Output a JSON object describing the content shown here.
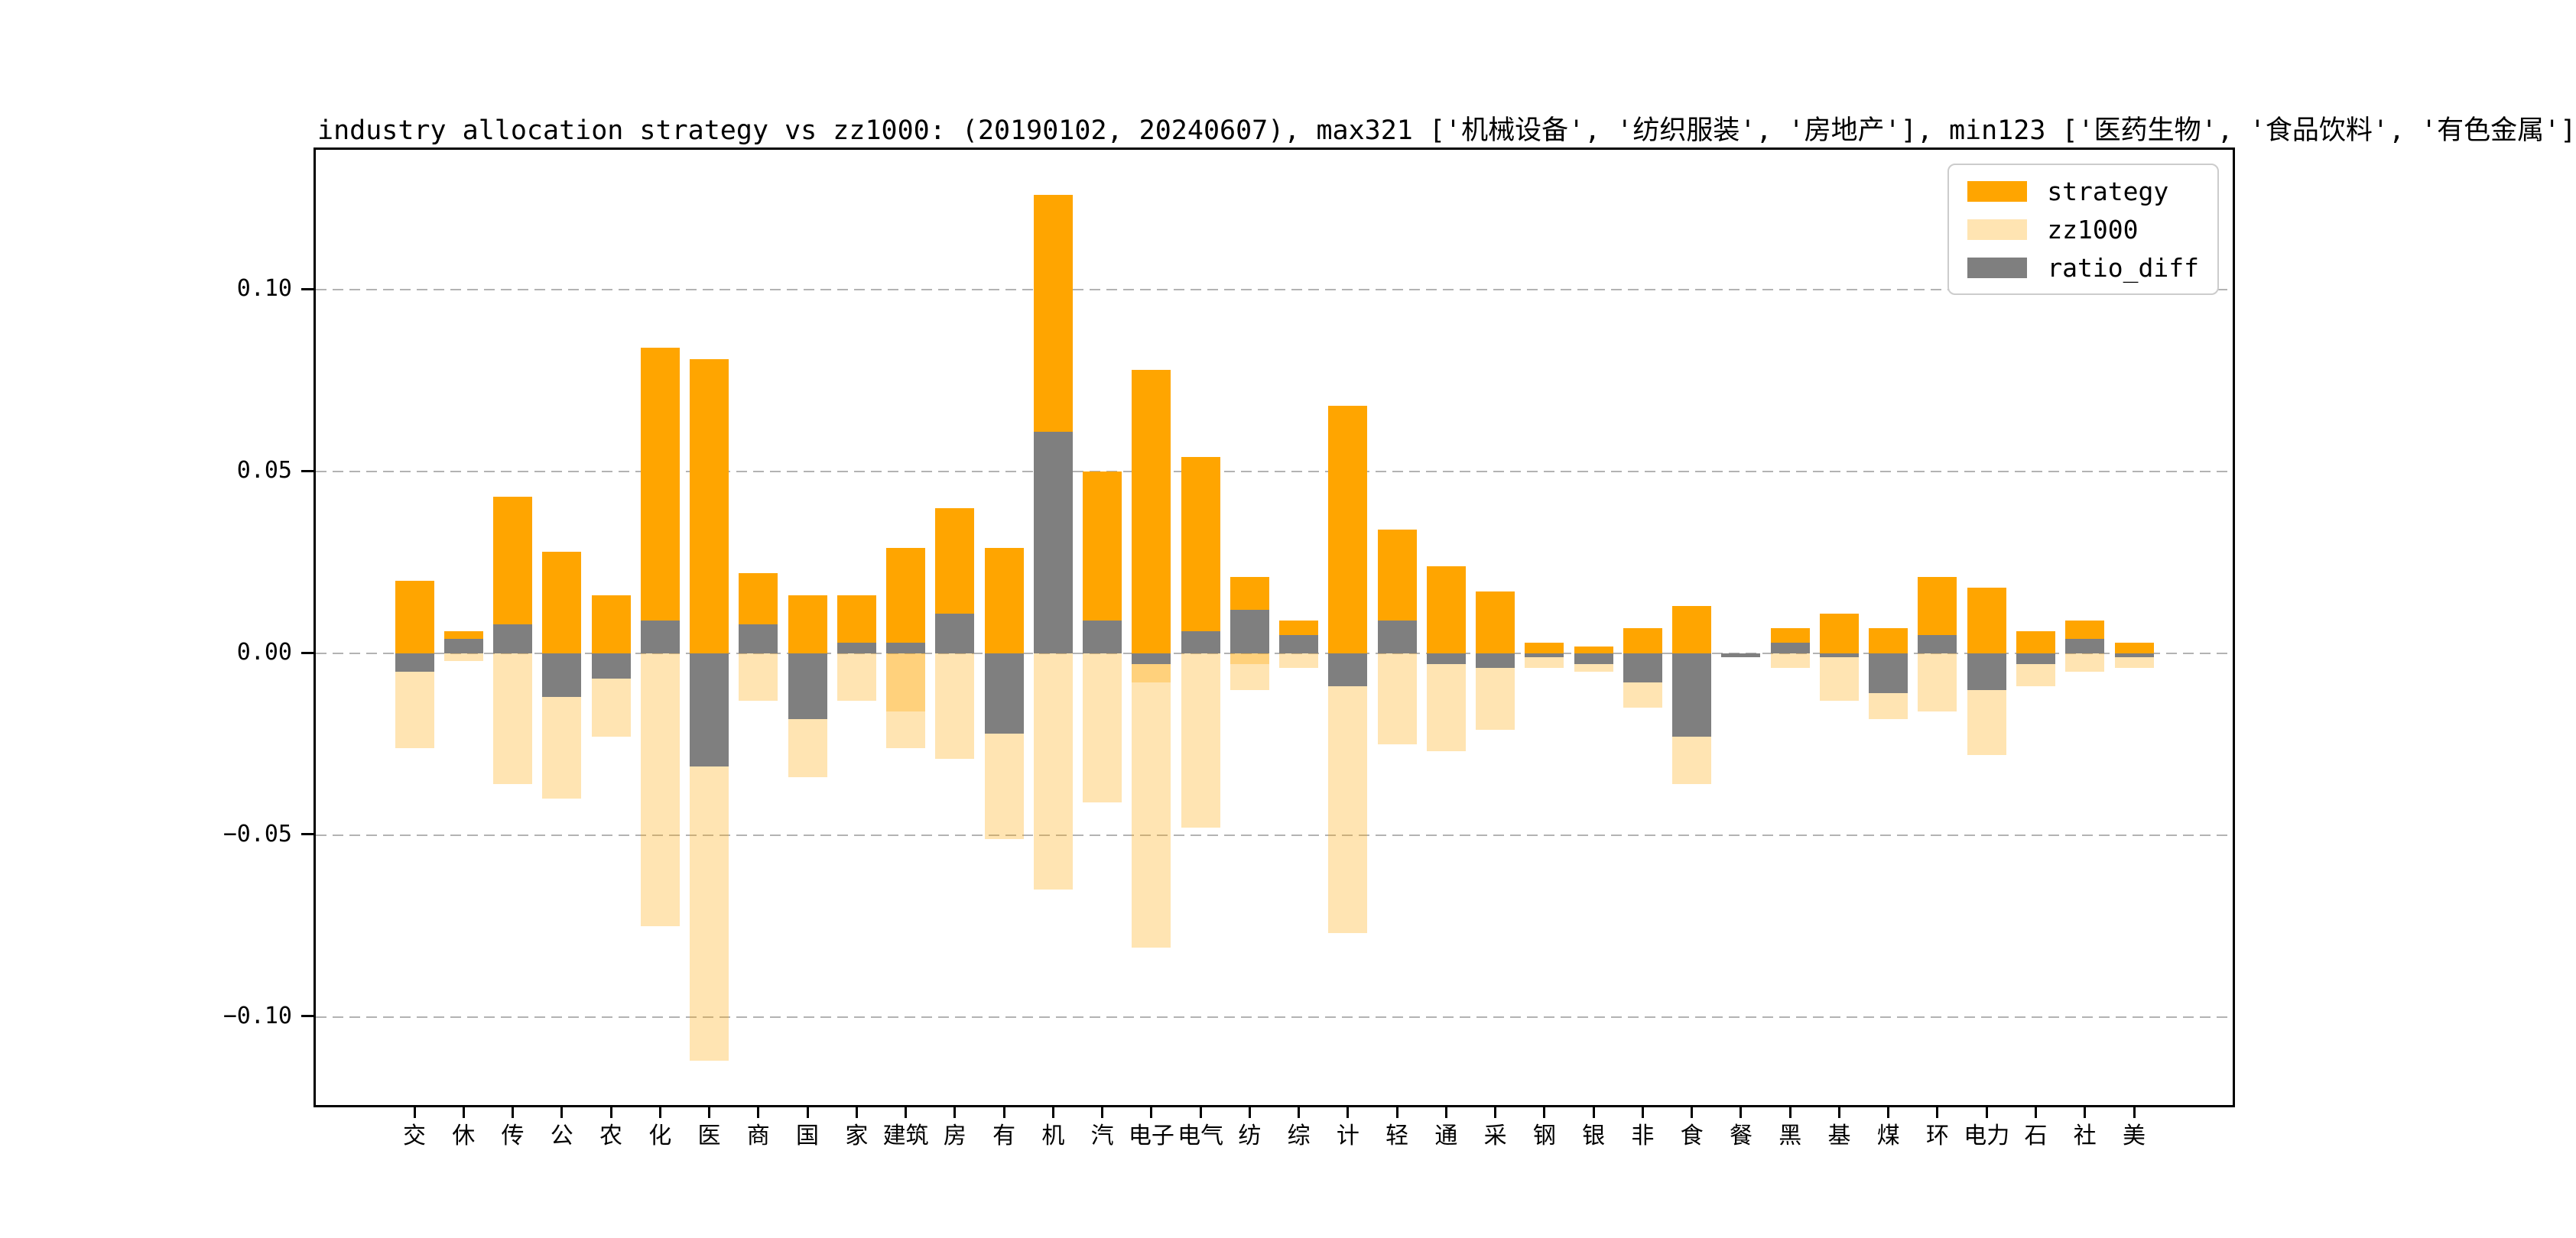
{
  "figure": {
    "background": "#ffffff",
    "title": "industry allocation strategy vs zz1000: (20190102, 20240607), max321 ['机械设备', '纺织服装', '房地产'], min123 ['医药生物', '食品饮料', '有色金属']"
  },
  "chart_data": {
    "type": "bar",
    "title": "industry allocation strategy vs zz1000: (20190102, 20240607), max321 ['机械设备', '纺织服装', '房地产'], min123 ['医药生物', '食品饮料', '有色金属']",
    "categories": [
      "交",
      "休",
      "传",
      "公",
      "农",
      "化",
      "医",
      "商",
      "国",
      "家",
      "建筑",
      "房",
      "有",
      "机",
      "汽",
      "电子",
      "电气",
      "纺",
      "综",
      "计",
      "轻",
      "通",
      "采",
      "钢",
      "银",
      "非",
      "食",
      "餐",
      "黑",
      "基",
      "煤",
      "环",
      "电力",
      "石",
      "社",
      "美"
    ],
    "series": [
      {
        "name": "strategy",
        "color": "#FFA500",
        "alpha": 1.0,
        "direction": "up",
        "values": [
          0.02,
          0.006,
          0.043,
          0.028,
          0.016,
          0.084,
          0.081,
          0.022,
          0.016,
          0.016,
          0.029,
          0.04,
          0.029,
          0.126,
          0.05,
          0.078,
          0.054,
          0.021,
          0.009,
          0.068,
          0.034,
          0.024,
          0.017,
          0.003,
          0.002,
          0.007,
          0.013,
          0.0,
          0.007,
          0.011,
          0.007,
          0.021,
          0.018,
          0.006,
          0.009,
          0.003
        ]
      },
      {
        "name": "zz1000",
        "color": "#FFA500",
        "alpha": 0.3,
        "direction": "down",
        "values": [
          -0.026,
          -0.002,
          -0.036,
          -0.04,
          -0.023,
          -0.075,
          -0.112,
          -0.013,
          -0.034,
          -0.013,
          -0.026,
          -0.029,
          -0.051,
          -0.065,
          -0.041,
          -0.081,
          -0.048,
          -0.01,
          -0.004,
          -0.077,
          -0.025,
          -0.027,
          -0.021,
          -0.004,
          -0.005,
          -0.015,
          -0.036,
          -0.001,
          -0.004,
          -0.013,
          -0.018,
          -0.016,
          -0.028,
          -0.009,
          -0.005,
          -0.004
        ]
      },
      {
        "name": "ratio_diff",
        "color": "#7F7F7F",
        "alpha": 1.0,
        "direction": "signed",
        "values": [
          -0.005,
          0.004,
          0.008,
          -0.012,
          -0.007,
          0.009,
          -0.031,
          0.008,
          -0.018,
          0.003,
          0.003,
          0.011,
          -0.022,
          0.061,
          0.009,
          -0.003,
          0.006,
          0.012,
          0.005,
          -0.009,
          0.009,
          -0.003,
          -0.004,
          -0.001,
          -0.003,
          -0.008,
          -0.023,
          -0.001,
          0.003,
          -0.001,
          -0.011,
          0.005,
          -0.01,
          -0.003,
          0.004,
          -0.001
        ]
      }
    ],
    "overlap_extra_segments": [
      {
        "category": "建筑",
        "from": 0,
        "to": -0.016
      },
      {
        "category": "电子",
        "from": 0,
        "to": -0.008
      },
      {
        "category": "纺",
        "from": 0,
        "to": -0.003
      }
    ],
    "yticks": [
      0.1,
      0.05,
      0.0,
      -0.05,
      -0.1
    ],
    "ytick_labels": [
      "0.10",
      "0.05",
      "0.00",
      "−0.05",
      "−0.10"
    ],
    "ylim": [
      -0.1242,
      0.1385
    ],
    "xlabel": "",
    "ylabel": "",
    "grid": "horizontal dashed #b3b3b3, drawn below bars",
    "legend_position": "upper right",
    "legend_entries": [
      "strategy",
      "zz1000",
      "ratio_diff"
    ],
    "bar_width_ratio": 0.8
  },
  "colors": {
    "strategy": "#FFA500",
    "zz1000_rendered": "#FFE7C2",
    "zz1000_overlap_rendered": "#FBC97C",
    "ratio_diff": "#7F7F7F",
    "grid": "#b3b3b3",
    "axis": "#000000",
    "legend_border": "#cccccc"
  }
}
